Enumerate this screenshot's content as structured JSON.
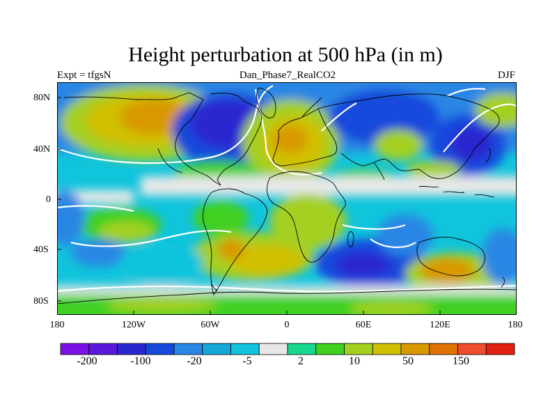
{
  "title": "Height perturbation at 500 hPa (in m)",
  "subtitle_left": "Expt = tfgsN",
  "subtitle_center": "Dan_Phase7_RealCO2",
  "subtitle_right": "DJF",
  "lat_labels": [
    "80N",
    "40N",
    "0",
    "40S",
    "80S"
  ],
  "lon_labels": [
    "180",
    "120W",
    "60W",
    "0",
    "60E",
    "120E",
    "180"
  ],
  "colorbar": {
    "colors": [
      "#7a12e8",
      "#5a18d8",
      "#2b28d0",
      "#1648dc",
      "#2a86e4",
      "#16a8d8",
      "#10c4dc",
      "#e8e8e8",
      "#18d890",
      "#40d020",
      "#a4d020",
      "#d0c000",
      "#d89800",
      "#e07000",
      "#f04c30",
      "#e02010"
    ],
    "labels": [
      "-200",
      "-100",
      "-20",
      "-5",
      "2",
      "10",
      "50",
      "150"
    ]
  }
}
